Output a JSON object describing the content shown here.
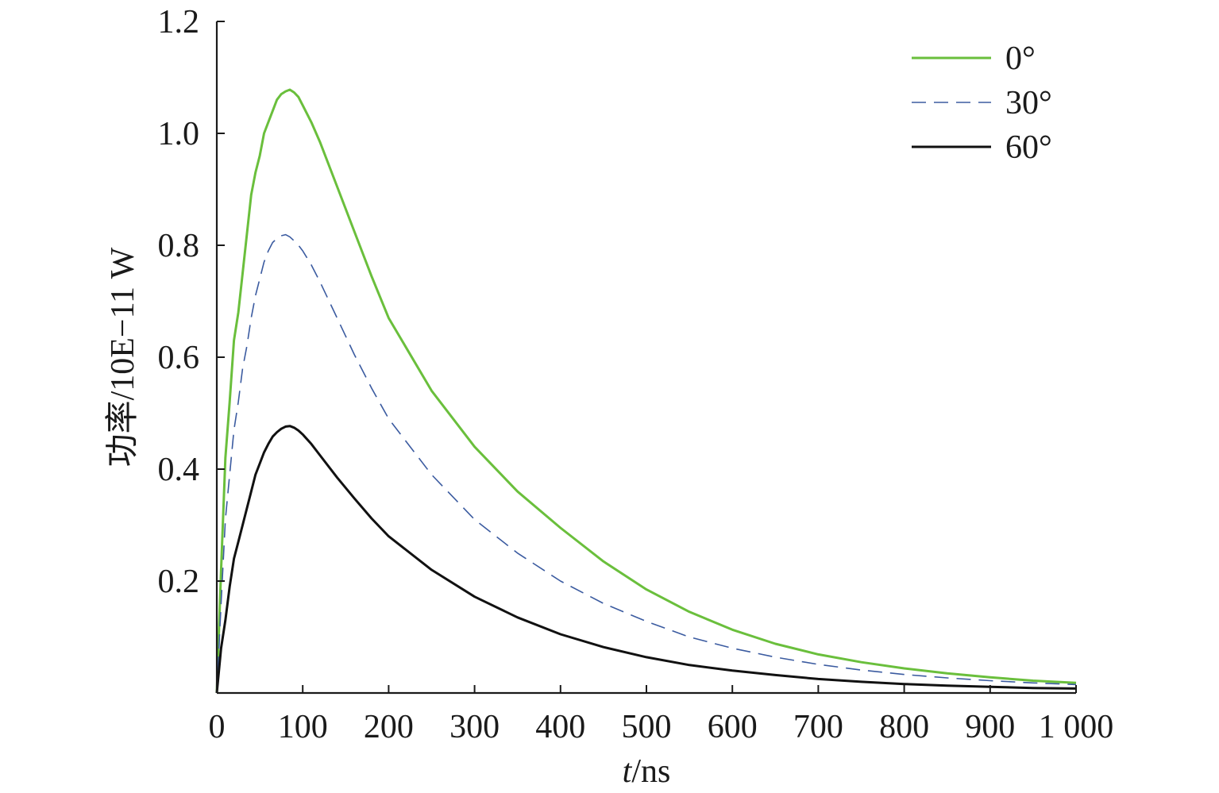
{
  "chart_data": {
    "type": "line",
    "xlabel": "t/ns",
    "xlabel_italic_part": "t",
    "xlabel_rest": "/ns",
    "ylabel": "功率/10E−11 W",
    "xlim": [
      0,
      1000
    ],
    "ylim": [
      0,
      1.2
    ],
    "x_ticks": [
      0,
      100,
      200,
      300,
      400,
      500,
      600,
      700,
      800,
      900,
      1000
    ],
    "x_tick_labels": [
      "0",
      "100",
      "200",
      "300",
      "400",
      "500",
      "600",
      "700",
      "800",
      "900",
      "1 000"
    ],
    "y_ticks": [
      0.2,
      0.4,
      0.6,
      0.8,
      1.0,
      1.2
    ],
    "y_tick_labels": [
      "0.2",
      "0.4",
      "0.6",
      "0.8",
      "1.0",
      "1.2"
    ],
    "grid": false,
    "legend_position": "top-right",
    "series": [
      {
        "name": "0°",
        "color": "#6abf3c",
        "style": "solid",
        "x": [
          0,
          5,
          10,
          15,
          20,
          25,
          30,
          35,
          40,
          45,
          50,
          55,
          60,
          65,
          70,
          75,
          80,
          85,
          90,
          95,
          100,
          110,
          120,
          140,
          160,
          180,
          200,
          250,
          300,
          350,
          400,
          450,
          500,
          550,
          600,
          650,
          700,
          750,
          800,
          850,
          900,
          950,
          1000
        ],
        "y": [
          0.0,
          0.22,
          0.42,
          0.52,
          0.63,
          0.68,
          0.75,
          0.82,
          0.89,
          0.93,
          0.96,
          1.0,
          1.02,
          1.04,
          1.06,
          1.07,
          1.075,
          1.078,
          1.073,
          1.065,
          1.05,
          1.02,
          0.985,
          0.905,
          0.825,
          0.745,
          0.67,
          0.54,
          0.44,
          0.36,
          0.295,
          0.235,
          0.185,
          0.145,
          0.113,
          0.088,
          0.069,
          0.055,
          0.044,
          0.035,
          0.028,
          0.022,
          0.018
        ]
      },
      {
        "name": "30°",
        "color": "#3b5ba0",
        "style": "dashed",
        "x": [
          0,
          5,
          10,
          15,
          20,
          25,
          30,
          35,
          40,
          45,
          50,
          55,
          60,
          65,
          70,
          75,
          80,
          85,
          90,
          95,
          100,
          110,
          120,
          140,
          160,
          180,
          200,
          250,
          300,
          350,
          400,
          450,
          500,
          550,
          600,
          650,
          700,
          750,
          800,
          850,
          900,
          950,
          1000
        ],
        "y": [
          0.0,
          0.16,
          0.31,
          0.39,
          0.47,
          0.52,
          0.58,
          0.62,
          0.67,
          0.71,
          0.74,
          0.77,
          0.79,
          0.805,
          0.812,
          0.817,
          0.819,
          0.815,
          0.808,
          0.8,
          0.79,
          0.765,
          0.735,
          0.67,
          0.605,
          0.545,
          0.49,
          0.39,
          0.31,
          0.25,
          0.2,
          0.16,
          0.128,
          0.1,
          0.08,
          0.064,
          0.051,
          0.041,
          0.033,
          0.027,
          0.022,
          0.018,
          0.015
        ]
      },
      {
        "name": "60°",
        "color": "#111111",
        "style": "solid",
        "x": [
          0,
          5,
          10,
          15,
          20,
          25,
          30,
          35,
          40,
          45,
          50,
          55,
          60,
          65,
          70,
          75,
          80,
          85,
          90,
          95,
          100,
          110,
          120,
          140,
          160,
          180,
          200,
          250,
          300,
          350,
          400,
          450,
          500,
          550,
          600,
          650,
          700,
          750,
          800,
          850,
          900,
          950,
          1000
        ],
        "y": [
          0.0,
          0.08,
          0.13,
          0.19,
          0.24,
          0.27,
          0.3,
          0.33,
          0.36,
          0.39,
          0.41,
          0.43,
          0.445,
          0.458,
          0.466,
          0.472,
          0.476,
          0.477,
          0.474,
          0.469,
          0.462,
          0.445,
          0.425,
          0.385,
          0.348,
          0.312,
          0.28,
          0.22,
          0.172,
          0.135,
          0.105,
          0.082,
          0.064,
          0.05,
          0.04,
          0.032,
          0.025,
          0.02,
          0.016,
          0.013,
          0.011,
          0.009,
          0.008
        ]
      }
    ]
  }
}
